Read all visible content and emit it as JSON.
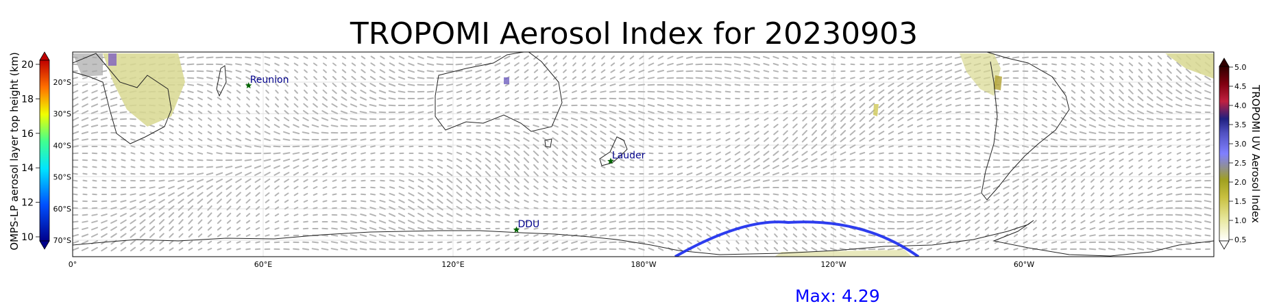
{
  "title": "TROPOMI Aerosol Index for 20230903",
  "max_label": "Max: 4.29",
  "left_colorbar": {
    "label": "OMPS-LP aerosol layer top height (km)",
    "ticks": [
      "10",
      "12",
      "14",
      "16",
      "18",
      "20"
    ]
  },
  "right_colorbar": {
    "label": "TROPOMI UV Aerosol Index",
    "ticks": [
      "0.5",
      "1.0",
      "1.5",
      "2.0",
      "2.5",
      "3.0",
      "3.5",
      "4.0",
      "4.5",
      "5.0"
    ]
  },
  "lon_ticks": [
    "0°",
    "60°E",
    "120°E",
    "180°W",
    "120°W",
    "60°W"
  ],
  "lat_labels": [
    "20°S",
    "30°S",
    "40°S",
    "50°S",
    "60°S",
    "70°S"
  ],
  "sites": [
    {
      "name": "Reunion",
      "lon": 55.5,
      "lat": -21.1
    },
    {
      "name": "Lauder",
      "lon": 169.7,
      "lat": -45.0
    },
    {
      "name": "DDU",
      "lon": 140.0,
      "lat": -66.7
    }
  ],
  "colors": {
    "orbit_track": "#2233ee",
    "site_marker": "#006400",
    "max_text": "#0000ff"
  }
}
